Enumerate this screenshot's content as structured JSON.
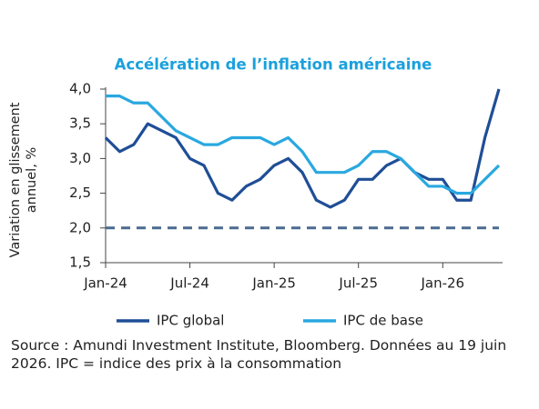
{
  "chart_data": {
    "type": "line",
    "title": "Accélération de l’inflation américaine",
    "y_label": "Variation en glissement annuel, %",
    "categories": [
      "Jan-24",
      null,
      null,
      null,
      null,
      null,
      "Jul-24",
      null,
      null,
      null,
      null,
      null,
      "Jan-25",
      null,
      null,
      null,
      null,
      null,
      "Jul-25",
      null,
      null,
      null,
      null,
      null,
      "Jan-26",
      null,
      null,
      null,
      null
    ],
    "series": [
      {
        "name": "IPC global",
        "color": "#1f4e96",
        "values": [
          3.3,
          3.1,
          3.2,
          3.5,
          3.4,
          3.3,
          3.0,
          2.9,
          2.5,
          2.4,
          2.6,
          2.7,
          2.9,
          3.0,
          2.8,
          2.4,
          2.3,
          2.4,
          2.7,
          2.7,
          2.9,
          3.0,
          2.8,
          2.7,
          2.7,
          2.4,
          2.4,
          3.3,
          4.0
        ]
      },
      {
        "name": "IPC de base",
        "color": "#2aa8e0",
        "values": [
          3.9,
          3.9,
          3.8,
          3.8,
          3.6,
          3.4,
          3.3,
          3.2,
          3.2,
          3.3,
          3.3,
          3.3,
          3.2,
          3.3,
          3.1,
          2.8,
          2.8,
          2.8,
          2.9,
          3.1,
          3.1,
          3.0,
          2.8,
          2.6,
          2.6,
          2.5,
          2.5,
          2.7,
          2.9
        ]
      }
    ],
    "reference_line": {
      "value": 2.0,
      "color": "#4a6a90"
    },
    "ylim": [
      1.5,
      4.0
    ],
    "yticks": [
      {
        "value": 1.5,
        "label": "1,5"
      },
      {
        "value": 2.0,
        "label": "2,0"
      },
      {
        "value": 2.5,
        "label": "2,5"
      },
      {
        "value": 3.0,
        "label": "3,0"
      },
      {
        "value": 3.5,
        "label": "3,5"
      },
      {
        "value": 4.0,
        "label": "4,0"
      }
    ],
    "source": "Source : Amundi Investment Institute, Bloomberg. Données au 19 juin 2026. IPC = indice des prix à la consommation"
  }
}
